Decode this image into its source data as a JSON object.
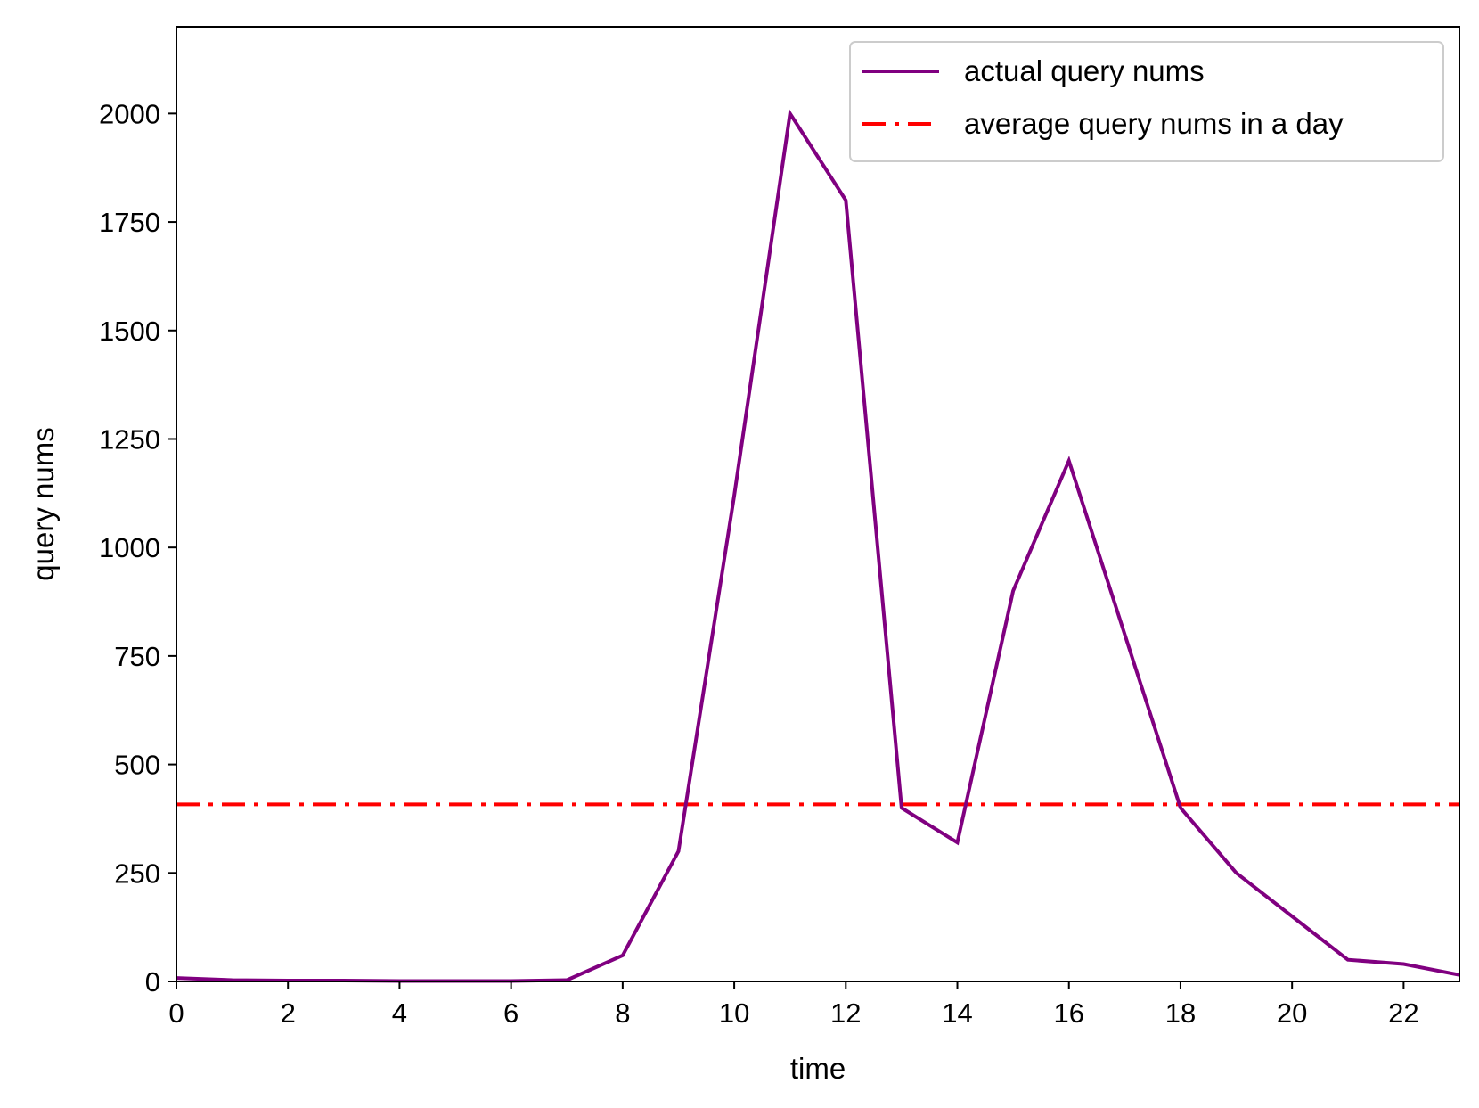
{
  "chart_data": {
    "type": "line",
    "title": "",
    "xlabel": "time",
    "ylabel": "query nums",
    "xlim": [
      0,
      23
    ],
    "ylim": [
      0,
      2200
    ],
    "xticks": [
      0,
      2,
      4,
      6,
      8,
      10,
      12,
      14,
      16,
      18,
      20,
      22
    ],
    "yticks": [
      0,
      250,
      500,
      750,
      1000,
      1250,
      1500,
      1750,
      2000
    ],
    "grid": false,
    "legend_position": "top-right",
    "x": [
      0,
      1,
      2,
      3,
      4,
      5,
      6,
      7,
      8,
      9,
      10,
      11,
      12,
      13,
      14,
      15,
      16,
      17,
      18,
      19,
      20,
      21,
      22,
      23
    ],
    "series": [
      {
        "name": "actual query nums",
        "color": "#800080",
        "style": "solid",
        "values": [
          8,
          3,
          2,
          2,
          1,
          1,
          1,
          3,
          60,
          300,
          1120,
          2000,
          1800,
          400,
          320,
          900,
          1200,
          800,
          400,
          250,
          150,
          50,
          40,
          15
        ]
      },
      {
        "name": "average query nums in a day",
        "color": "#ff0000",
        "style": "dash-dot",
        "constant": 408
      }
    ]
  }
}
